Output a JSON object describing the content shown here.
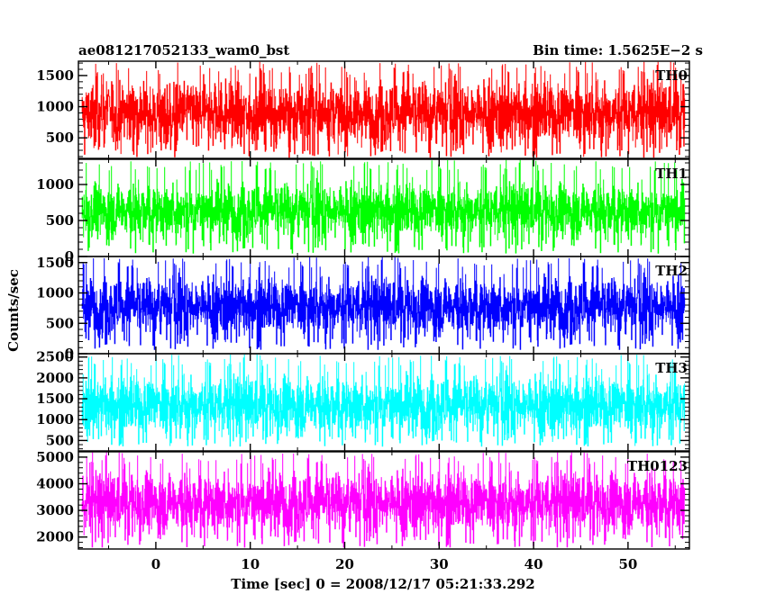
{
  "chart_data": {
    "type": "line",
    "title_left": "ae081217052133_wam0_bst",
    "title_right": "Bin time: 1.5625E−2 s",
    "xlabel": "Time [sec] 0 = 2008/12/17 05:21:33.292",
    "ylabel": "Counts/sec",
    "xlim": [
      -8.2,
      56.5
    ],
    "x_ticks": [
      0,
      10,
      20,
      30,
      40,
      50
    ],
    "x_tick_labels": [
      "0",
      "10",
      "20",
      "30",
      "40",
      "50"
    ],
    "data_x_range": [
      -7.8,
      56.0
    ],
    "grid": false,
    "legend": "none",
    "panels": [
      {
        "name": "TH0",
        "color": "#ff0000",
        "ylim": [
          170,
          1730
        ],
        "y_ticks": [
          500,
          1000,
          1500
        ],
        "y_tick_labels": [
          "500",
          "1000",
          "1500"
        ],
        "mean": 900,
        "spread": 560,
        "min": 180,
        "max": 1720
      },
      {
        "name": "TH1",
        "color": "#00ff00",
        "ylim": [
          0,
          1350
        ],
        "y_ticks": [
          0,
          500,
          1000
        ],
        "y_tick_labels": [
          "0",
          "500",
          "1000"
        ],
        "mean": 640,
        "spread": 420,
        "min": 40,
        "max": 1340
      },
      {
        "name": "TH2",
        "color": "#0000ff",
        "ylim": [
          0,
          1600
        ],
        "y_ticks": [
          0,
          500,
          1000,
          1500
        ],
        "y_tick_labels": [
          "0",
          "500",
          "1000",
          "1500"
        ],
        "mean": 780,
        "spread": 520,
        "min": 60,
        "max": 1590
      },
      {
        "name": "TH3",
        "color": "#00ffff",
        "ylim": [
          250,
          2580
        ],
        "y_ticks": [
          500,
          1000,
          1500,
          2000,
          2500
        ],
        "y_tick_labels": [
          "500",
          "1000",
          "1500",
          "2000",
          "2500"
        ],
        "mean": 1350,
        "spread": 780,
        "min": 350,
        "max": 2560
      },
      {
        "name": "TH0123",
        "color": "#ff00ff",
        "ylim": [
          1550,
          5200
        ],
        "y_ticks": [
          2000,
          3000,
          4000,
          5000
        ],
        "y_tick_labels": [
          "2000",
          "3000",
          "4000",
          "5000"
        ],
        "mean": 3300,
        "spread": 1250,
        "min": 1600,
        "max": 5180
      }
    ]
  }
}
